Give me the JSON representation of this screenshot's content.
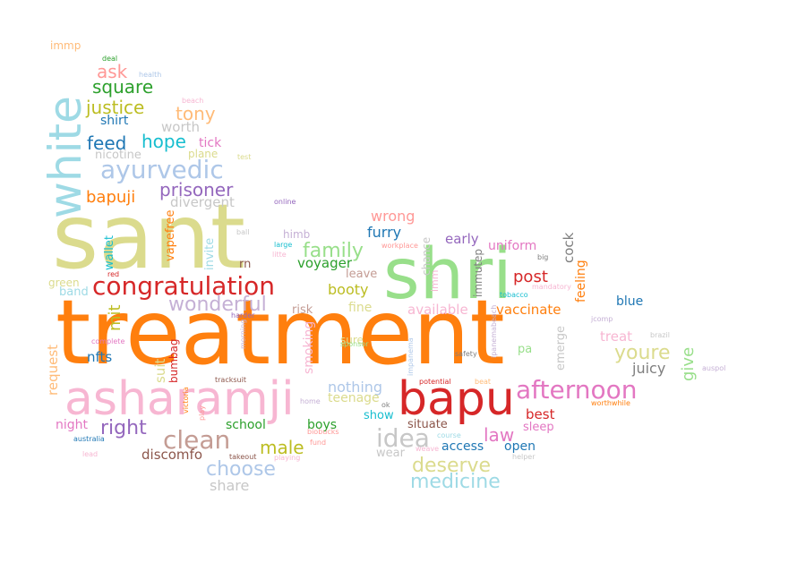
{
  "words": [
    {
      "text": "treatment",
      "color": "#ff7f0e"
    },
    {
      "text": "sant",
      "color": "#dbdb8d"
    },
    {
      "text": "shri",
      "color": "#98df8a"
    },
    {
      "text": "asharamji",
      "color": "#f7b6d2"
    },
    {
      "text": "bapu",
      "color": "#d62728"
    },
    {
      "text": "white",
      "color": "#9edae5"
    },
    {
      "text": "congratulation",
      "color": "#d62728"
    },
    {
      "text": "ayurvedic",
      "color": "#aec7e8"
    },
    {
      "text": "afternoon",
      "color": "#e377c2"
    },
    {
      "text": "clean",
      "color": "#c49c94"
    },
    {
      "text": "idea",
      "color": "#c7c7c7"
    },
    {
      "text": "wonderful",
      "color": "#c5b0d5"
    },
    {
      "text": "prisoner",
      "color": "#9467bd"
    },
    {
      "text": "family",
      "color": "#98df8a"
    },
    {
      "text": "deserve",
      "color": "#dbdb8d"
    },
    {
      "text": "medicine",
      "color": "#9edae5"
    },
    {
      "text": "choose",
      "color": "#aec7e8"
    },
    {
      "text": "youre",
      "color": "#dbdb8d"
    },
    {
      "text": "square",
      "color": "#2ca02c"
    },
    {
      "text": "justice",
      "color": "#bcbd22"
    },
    {
      "text": "feed",
      "color": "#1f77b4"
    },
    {
      "text": "hope",
      "color": "#17becf"
    },
    {
      "text": "tony",
      "color": "#ffbb78"
    },
    {
      "text": "ask",
      "color": "#ff9896"
    },
    {
      "text": "right",
      "color": "#9467bd"
    },
    {
      "text": "male",
      "color": "#bcbd22"
    },
    {
      "text": "law",
      "color": "#e377c2"
    },
    {
      "text": "bapuji",
      "color": "#ff7f0e"
    },
    {
      "text": "shirt",
      "color": "#1f77b4"
    },
    {
      "text": "worth",
      "color": "#c7c7c7"
    },
    {
      "text": "nicotine",
      "color": "#c7c7c7"
    },
    {
      "text": "divergent",
      "color": "#c7c7c7"
    },
    {
      "text": "tick",
      "color": "#e377c2"
    },
    {
      "text": "plane",
      "color": "#dbdb8d"
    },
    {
      "text": "wrong",
      "color": "#ff9896"
    },
    {
      "text": "furry",
      "color": "#1f77b4"
    },
    {
      "text": "voyager",
      "color": "#2ca02c"
    },
    {
      "text": "booty",
      "color": "#bcbd22"
    },
    {
      "text": "early",
      "color": "#9467bd"
    },
    {
      "text": "uniform",
      "color": "#e377c2"
    },
    {
      "text": "post",
      "color": "#d62728"
    },
    {
      "text": "vaccinate",
      "color": "#ff7f0e"
    },
    {
      "text": "available",
      "color": "#f7b6d2"
    },
    {
      "text": "fine",
      "color": "#dbdb8d"
    },
    {
      "text": "leave",
      "color": "#c49c94"
    },
    {
      "text": "himb",
      "color": "#c5b0d5"
    },
    {
      "text": "risk",
      "color": "#c49c94"
    },
    {
      "text": "rn",
      "color": "#8c564b"
    },
    {
      "text": "mit",
      "color": "#bcbd22"
    },
    {
      "text": "nfts",
      "color": "#1f77b4"
    },
    {
      "text": "wallet",
      "color": "#17becf"
    },
    {
      "text": "vapefree",
      "color": "#ff7f0e"
    },
    {
      "text": "invite",
      "color": "#9edae5"
    },
    {
      "text": "green",
      "color": "#dbdb8d"
    },
    {
      "text": "band",
      "color": "#9edae5"
    },
    {
      "text": "request",
      "color": "#ffbb78"
    },
    {
      "text": "suit",
      "color": "#dbdb8d"
    },
    {
      "text": "bumbag",
      "color": "#d62728"
    },
    {
      "text": "night",
      "color": "#e377c2"
    },
    {
      "text": "school",
      "color": "#2ca02c"
    },
    {
      "text": "boys",
      "color": "#2ca02c"
    },
    {
      "text": "discomfo",
      "color": "#8c564b"
    },
    {
      "text": "share",
      "color": "#c7c7c7"
    },
    {
      "text": "nothing",
      "color": "#aec7e8"
    },
    {
      "text": "teenage",
      "color": "#dbdb8d"
    },
    {
      "text": "sure",
      "color": "#dbdb8d"
    },
    {
      "text": "smoking",
      "color": "#f7b6d2"
    },
    {
      "text": "show",
      "color": "#17becf"
    },
    {
      "text": "situate",
      "color": "#8c564b"
    },
    {
      "text": "access",
      "color": "#1f77b4"
    },
    {
      "text": "open",
      "color": "#1f77b4"
    },
    {
      "text": "wear",
      "color": "#c7c7c7"
    },
    {
      "text": "best",
      "color": "#d62728"
    },
    {
      "text": "sleep",
      "color": "#e377c2"
    },
    {
      "text": "treat",
      "color": "#f7b6d2"
    },
    {
      "text": "juicy",
      "color": "#7f7f7f"
    },
    {
      "text": "give",
      "color": "#98df8a"
    },
    {
      "text": "emerge",
      "color": "#c7c7c7"
    },
    {
      "text": "pa",
      "color": "#98df8a"
    },
    {
      "text": "blue",
      "color": "#1f77b4"
    },
    {
      "text": "feeling",
      "color": "#ff7f0e"
    },
    {
      "text": "cock",
      "color": "#7f7f7f"
    },
    {
      "text": "chance",
      "color": "#c7c7c7"
    },
    {
      "text": "immutep",
      "color": "#7f7f7f"
    },
    {
      "text": "imm",
      "color": "#f7b6d2"
    },
    {
      "text": "immp",
      "color": "#ffbb78"
    },
    {
      "text": "deal",
      "color": "#2ca02c"
    },
    {
      "text": "health",
      "color": "#aec7e8"
    },
    {
      "text": "beach",
      "color": "#f7b6d2"
    },
    {
      "text": "test",
      "color": "#dbdb8d"
    },
    {
      "text": "online",
      "color": "#9467bd"
    },
    {
      "text": "ball",
      "color": "#c7c7c7"
    },
    {
      "text": "large",
      "color": "#17becf"
    },
    {
      "text": "litte",
      "color": "#f7b6d2"
    },
    {
      "text": "workplace",
      "color": "#ff9896"
    },
    {
      "text": "big",
      "color": "#7f7f7f"
    },
    {
      "text": "mandatory",
      "color": "#f7b6d2"
    },
    {
      "text": "tobacco",
      "color": "#17becf"
    },
    {
      "text": "red",
      "color": "#d62728"
    },
    {
      "text": "harder",
      "color": "#9467bd"
    },
    {
      "text": "complete",
      "color": "#e377c2"
    },
    {
      "text": "morning",
      "color": "#c5b0d5"
    },
    {
      "text": "tracksuit",
      "color": "#8c564b"
    },
    {
      "text": "sponsor",
      "color": "#98df8a"
    },
    {
      "text": "impanema",
      "color": "#aec7e8"
    },
    {
      "text": "ipanemabeach",
      "color": "#c5b0d5"
    },
    {
      "text": "safety",
      "color": "#7f7f7f"
    },
    {
      "text": "brazil",
      "color": "#c7c7c7"
    },
    {
      "text": "auspol",
      "color": "#c5b0d5"
    },
    {
      "text": "victoria",
      "color": "#ff7f0e"
    },
    {
      "text": "play",
      "color": "#ff9896"
    },
    {
      "text": "home",
      "color": "#c5b0d5"
    },
    {
      "text": "ok",
      "color": "#7f7f7f"
    },
    {
      "text": "potential",
      "color": "#d62728"
    },
    {
      "text": "beat",
      "color": "#ffbb78"
    },
    {
      "text": "worthwhile",
      "color": "#ff7f0e"
    },
    {
      "text": "australia",
      "color": "#1f77b4"
    },
    {
      "text": "lead",
      "color": "#f7b6d2"
    },
    {
      "text": "takeout",
      "color": "#8c564b"
    },
    {
      "text": "playing",
      "color": "#f7b6d2"
    },
    {
      "text": "fund",
      "color": "#ff9896"
    },
    {
      "text": "biobucks",
      "color": "#ff9896"
    },
    {
      "text": "course",
      "color": "#9edae5"
    },
    {
      "text": "weave",
      "color": "#f7b6d2"
    },
    {
      "text": "helper",
      "color": "#c7c7c7"
    },
    {
      "text": "jcomp",
      "color": "#c5b0d5"
    }
  ]
}
